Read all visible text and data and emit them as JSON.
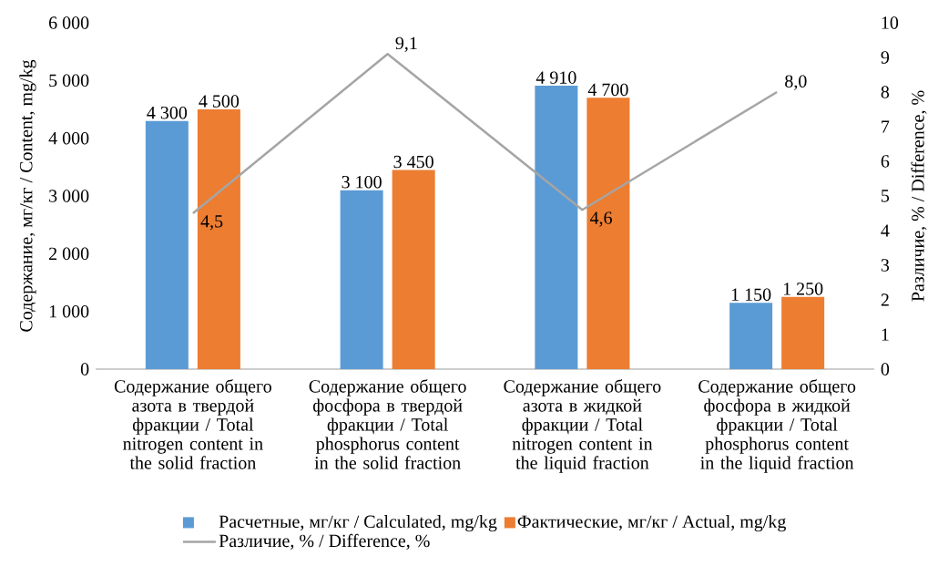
{
  "chart_data": {
    "type": "bar",
    "categories": [
      "Содержание общего азота в твердой фракции / Total nitrogen content in the solid fraction",
      "Содержание общего фосфора в твердой фракции / Total phosphorus content in the solid fraction",
      "Содержание общего азота в жидкой фракции / Total nitrogen content in the liquid fraction",
      "Содержание общего фосфора в жидкой фракции / Total phosphorus content in the liquid fraction"
    ],
    "series": [
      {
        "name": "Расчетные, мг/кг / Calculated, mg/kg",
        "color": "#5b9bd5",
        "values": [
          4300,
          3100,
          4910,
          1150
        ],
        "value_labels": [
          "4 300",
          "3 100",
          "4 910",
          "1 150"
        ]
      },
      {
        "name": "Фактические, мг/кг / Actual, mg/kg",
        "color": "#ed7d31",
        "values": [
          4500,
          3450,
          4700,
          1250
        ],
        "value_labels": [
          "4 500",
          "3 450",
          "4 700",
          "1 250"
        ]
      },
      {
        "name": "Различие, % / Difference, %",
        "type": "line",
        "axis": "y2",
        "color": "#a5a5a5",
        "values": [
          4.5,
          9.1,
          4.6,
          8.0
        ],
        "value_labels": [
          "4,5",
          "9,1",
          "4,6",
          "8,0"
        ]
      }
    ],
    "ylabel": "Содержание, мг/кг / Content, mg/kg",
    "y2label": "Различие, % / Difference, %",
    "ylim": [
      0,
      6000
    ],
    "yticks": [
      0,
      {
        "value": 1000,
        "label": "1 000"
      },
      {
        "value": 2000,
        "label": "2 000"
      },
      {
        "value": 3000,
        "label": "3 000"
      },
      {
        "value": 4000,
        "label": "4 000"
      },
      {
        "value": 5000,
        "label": "5 000"
      },
      {
        "value": 6000,
        "label": "6 000"
      }
    ],
    "y2lim": [
      0,
      10
    ],
    "y2ticks": [
      0,
      1,
      2,
      3,
      4,
      5,
      6,
      7,
      8,
      9,
      10
    ],
    "legend": "bottom"
  }
}
